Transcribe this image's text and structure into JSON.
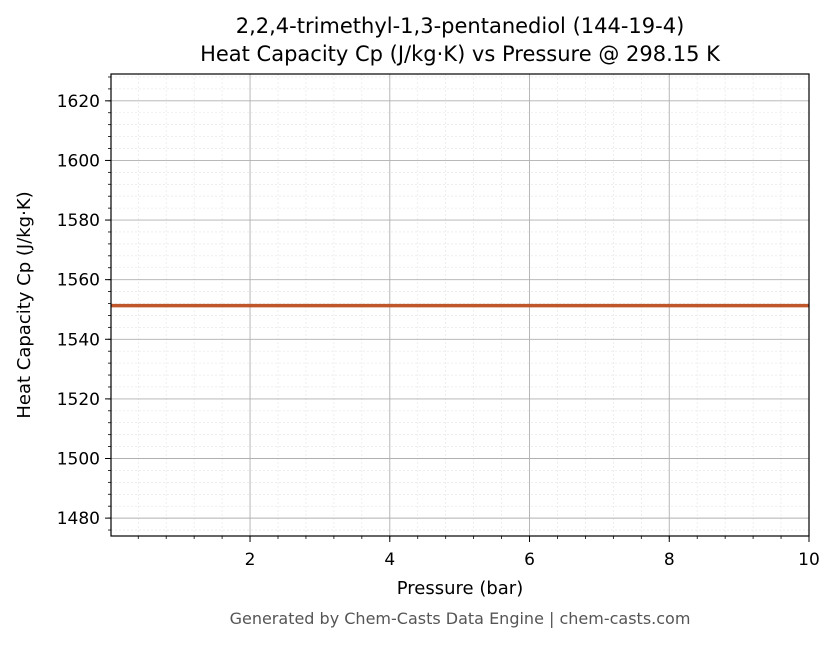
{
  "chart_data": {
    "type": "line",
    "title": "2,2,4-trimethyl-1,3-pentanediol (144-19-4)",
    "subtitle": "Heat Capacity Cp (J/kg·K) vs Pressure @ 298.15 K",
    "xlabel": "Pressure (bar)",
    "ylabel": "Heat Capacity Cp (J/kg·K)",
    "xlim": [
      0.01,
      10
    ],
    "ylim": [
      1474,
      1629
    ],
    "x_ticks": [
      2,
      4,
      6,
      8,
      10
    ],
    "y_ticks": [
      1480,
      1500,
      1520,
      1540,
      1560,
      1580,
      1600,
      1620
    ],
    "grid": true,
    "series": [
      {
        "color": "#c0572a",
        "x": [
          0.01,
          2,
          4,
          6,
          8,
          10
        ],
        "y": [
          1551.3,
          1551.3,
          1551.3,
          1551.3,
          1551.3,
          1551.3
        ]
      }
    ]
  },
  "footer": "Generated by Chem-Casts Data Engine | chem-casts.com"
}
